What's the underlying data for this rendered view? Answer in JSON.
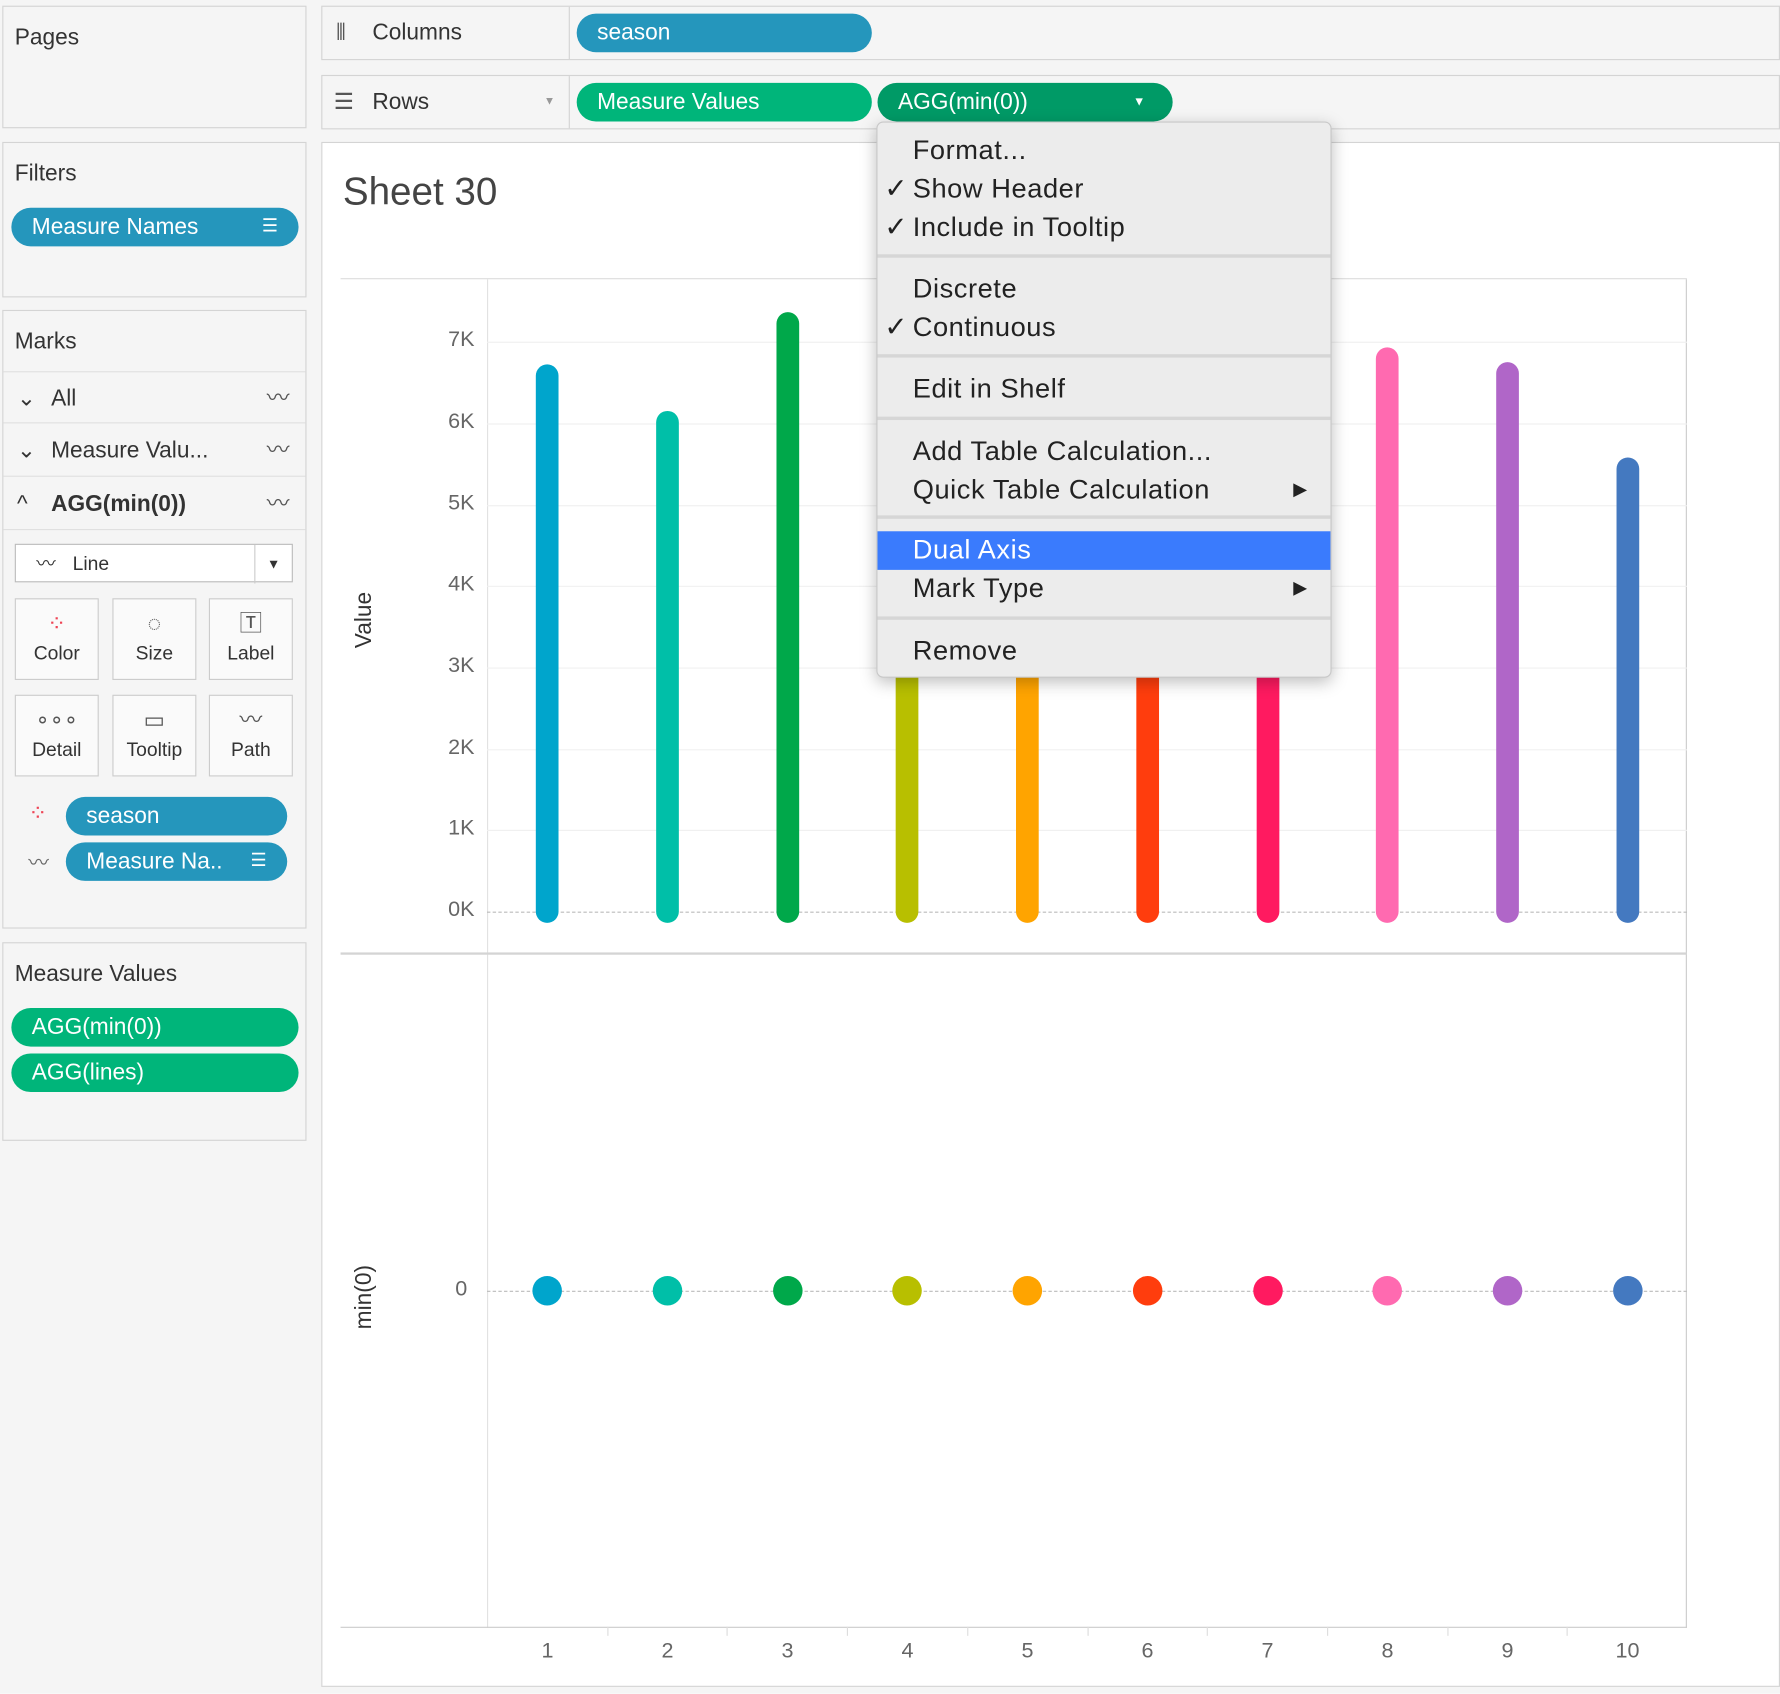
{
  "pages": {
    "title": "Pages"
  },
  "filters": {
    "title": "Filters",
    "pills": [
      "Measure Names"
    ]
  },
  "marks": {
    "title": "Marks",
    "rows": [
      "All",
      "Measure Valu...",
      "AGG(min(0))"
    ],
    "mark_type": "Line",
    "buttons": [
      "Color",
      "Size",
      "Label",
      "Detail",
      "Tooltip",
      "Path"
    ],
    "fields": [
      "season",
      "Measure Na.."
    ]
  },
  "measure_values": {
    "title": "Measure Values",
    "pills": [
      "AGG(min(0))",
      "AGG(lines)"
    ]
  },
  "shelves": {
    "columns_label": "Columns",
    "columns_pills": [
      "season"
    ],
    "rows_label": "Rows",
    "rows_pills": [
      "Measure Values",
      "AGG(min(0))"
    ]
  },
  "sheet": {
    "title": "Sheet 30"
  },
  "menu": {
    "items": [
      {
        "label": "Format...",
        "checked": false
      },
      {
        "label": "Show Header",
        "checked": true
      },
      {
        "label": "Include in Tooltip",
        "checked": true
      },
      {
        "label": "Discrete",
        "checked": false
      },
      {
        "label": "Continuous",
        "checked": true
      },
      {
        "label": "Edit in Shelf",
        "checked": false
      },
      {
        "label": "Add Table Calculation...",
        "checked": false
      },
      {
        "label": "Quick Table Calculation",
        "submenu": true
      },
      {
        "label": "Dual Axis",
        "highlighted": true
      },
      {
        "label": "Mark Type",
        "submenu": true
      },
      {
        "label": "Remove"
      }
    ],
    "check": "✓",
    "arrow": "▶"
  },
  "chart_data": {
    "type": "bar",
    "categories": [
      "1",
      "2",
      "3",
      "4",
      "5",
      "6",
      "7",
      "8",
      "9",
      "10"
    ],
    "series": [
      {
        "name": "Value",
        "values": [
          6720,
          6150,
          7360,
          5200,
          5500,
          5900,
          6300,
          6930,
          6750,
          5580
        ]
      },
      {
        "name": "min(0)",
        "values": [
          0,
          0,
          0,
          0,
          0,
          0,
          0,
          0,
          0,
          0
        ]
      }
    ],
    "colors": [
      "#00a5cc",
      "#00bfa8",
      "#00a84a",
      "#b8bf00",
      "#ffa400",
      "#ff3d0d",
      "#ff1a60",
      "#ff6ab0",
      "#b066c8",
      "#4479c0"
    ],
    "ylabel_top": "Value",
    "ylabel_bottom": "min(0)",
    "yticks_top": [
      "0K",
      "1K",
      "2K",
      "3K",
      "4K",
      "5K",
      "6K",
      "7K"
    ],
    "ylim_top": [
      0,
      7700
    ],
    "yticks_bottom": [
      "0"
    ]
  }
}
